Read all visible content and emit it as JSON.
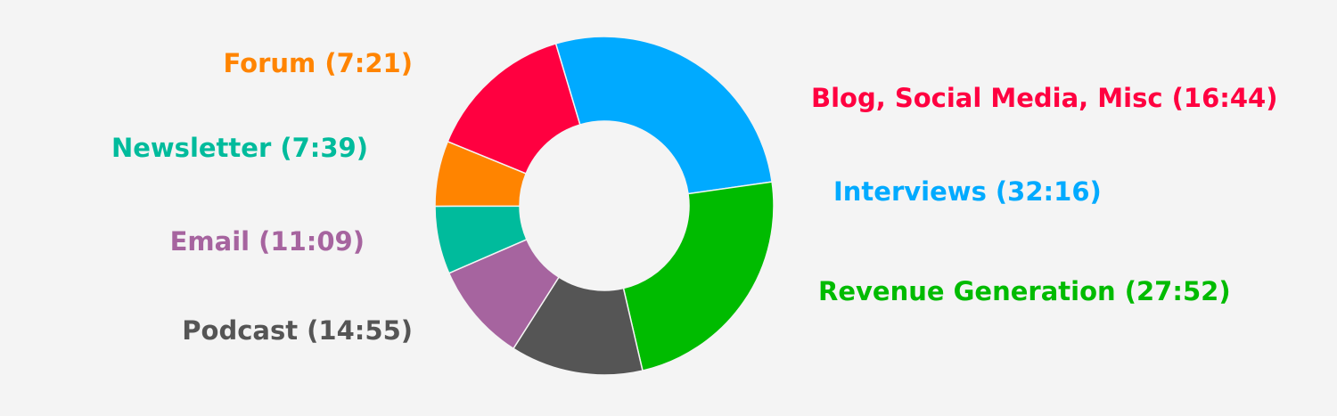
{
  "chart_data": {
    "type": "pie",
    "style": "donut",
    "slices": [
      {
        "label": "Blog, Social Media, Misc",
        "value": "16:44",
        "minutes": 16.73,
        "color": "#ff0040"
      },
      {
        "label": "Interviews",
        "value": "32:16",
        "minutes": 32.27,
        "color": "#00aaff"
      },
      {
        "label": "Revenue Generation",
        "value": "27:52",
        "minutes": 27.87,
        "color": "#00bb00"
      },
      {
        "label": "Podcast",
        "value": "14:55",
        "minutes": 14.92,
        "color": "#555555"
      },
      {
        "label": "Email",
        "value": "11:09",
        "minutes": 11.15,
        "color": "#a6649f"
      },
      {
        "label": "Newsletter",
        "value": "7:39",
        "minutes": 7.65,
        "color": "#00bb9c"
      },
      {
        "label": "Forum",
        "value": "7:21",
        "minutes": 7.35,
        "color": "#ff8400"
      }
    ],
    "labels": [
      {
        "text": "Blog, Social Media, Misc (16:44)",
        "color": "#ff0040"
      },
      {
        "text": "Interviews (32:16)",
        "color": "#00aaff"
      },
      {
        "text": "Revenue Generation (27:52)",
        "color": "#00bb00"
      },
      {
        "text": "Podcast (14:55)",
        "color": "#555555"
      },
      {
        "text": "Email (11:09)",
        "color": "#a6649f"
      },
      {
        "text": "Newsletter (7:39)",
        "color": "#00bb9c"
      },
      {
        "text": "Forum (7:21)",
        "color": "#ff8400"
      }
    ],
    "legend": "none"
  }
}
